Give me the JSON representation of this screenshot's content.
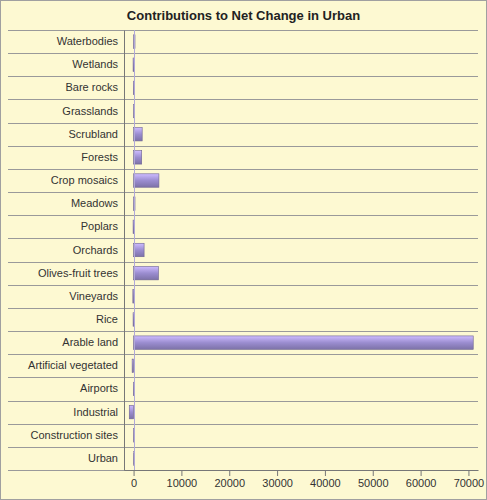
{
  "chart_data": {
    "type": "bar",
    "orientation": "horizontal",
    "title": "Contributions to Net Change in Urban",
    "categories": [
      "Waterbodies",
      "Wetlands",
      "Bare rocks",
      "Grasslands",
      "Scrubland",
      "Forests",
      "Crop mosaics",
      "Meadows",
      "Poplars",
      "Orchards",
      "Olives-fruit trees",
      "Vineyards",
      "Rice",
      "Arable land",
      "Artificial vegetated",
      "Airports",
      "Industrial",
      "Construction sites",
      "Urban"
    ],
    "values": [
      300,
      -100,
      -50,
      50,
      1800,
      1700,
      5300,
      300,
      -100,
      2200,
      5200,
      -150,
      -100,
      71000,
      -300,
      -50,
      -900,
      50,
      0
    ],
    "color": "#9b8dd0",
    "xlim": [
      -2000,
      72000
    ],
    "xticks": [
      0,
      10000,
      20000,
      30000,
      40000,
      50000,
      60000,
      70000
    ],
    "grid": true
  }
}
